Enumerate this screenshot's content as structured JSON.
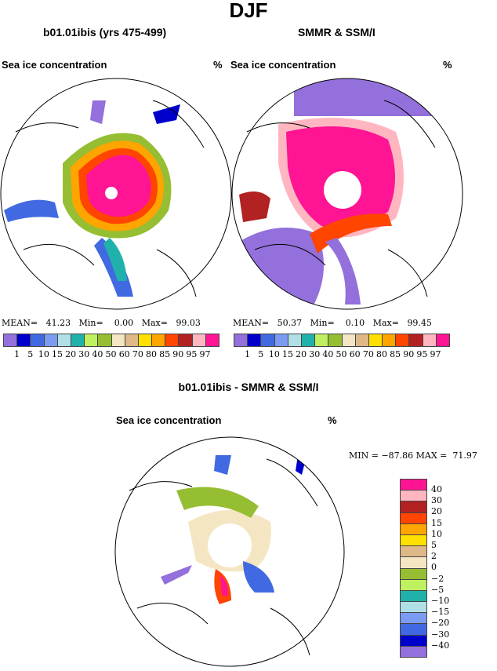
{
  "title": "DJF",
  "panels": [
    {
      "title": "b01.01ibis (yrs 475-499)",
      "variable": "Sea ice concentration",
      "units": "%",
      "stats": {
        "mean_label": "MEAN=",
        "mean": "41.23",
        "min_label": "Min=",
        "min": "0.00",
        "max_label": "Max=",
        "max": "99.03"
      }
    },
    {
      "title": "SMMR & SSM/I",
      "variable": "Sea ice concentration",
      "units": "%",
      "stats": {
        "mean_label": "MEAN=",
        "mean": "50.37",
        "min_label": "Min=",
        "min": "0.10",
        "max_label": "Max=",
        "max": "99.45"
      }
    }
  ],
  "diff_panel": {
    "title": "b01.01ibis - SMMR & SSM/I",
    "variable": "Sea ice concentration",
    "units": "%",
    "stats": "MIN = −87.86 MAX =  71.97"
  },
  "colorbar": {
    "labels": [
      "1",
      "5",
      "10",
      "15",
      "20",
      "30",
      "40",
      "50",
      "60",
      "70",
      "80",
      "85",
      "90",
      "95",
      "97"
    ],
    "colors": [
      "#9370db",
      "#0000cd",
      "#4169e1",
      "#7b9cf0",
      "#b0e0e6",
      "#20b2aa",
      "#bff060",
      "#96be32",
      "#f5e6c3",
      "#deb887",
      "#ffe000",
      "#ffa500",
      "#ff4500",
      "#b22222",
      "#ffb6c1",
      "#ff1493"
    ]
  },
  "diff_colorbar": {
    "labels": [
      "40",
      "30",
      "20",
      "15",
      "10",
      "5",
      "2",
      "0",
      "−2",
      "−5",
      "−10",
      "−15",
      "−20",
      "−30",
      "−40"
    ],
    "colors": [
      "#ff1493",
      "#ffb6c1",
      "#b22222",
      "#ff4500",
      "#ffa500",
      "#ffe000",
      "#deb887",
      "#f5e6c3",
      "#96be32",
      "#bff060",
      "#20b2aa",
      "#b0e0e6",
      "#7b9cf0",
      "#4169e1",
      "#0000cd",
      "#9370db"
    ]
  }
}
